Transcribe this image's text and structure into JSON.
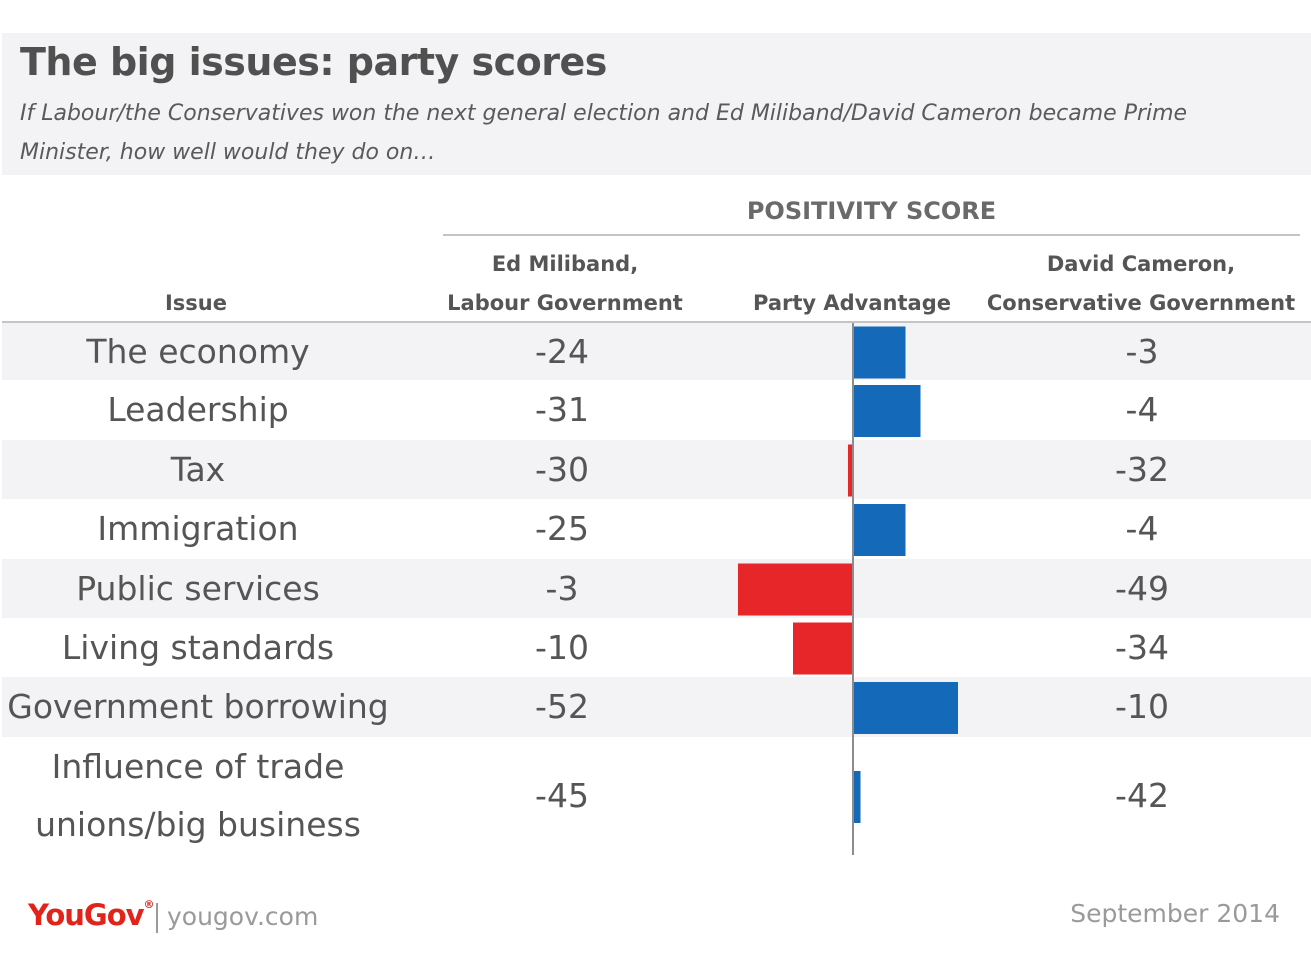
{
  "title": "The big issues: party scores",
  "subtitle": "If Labour/the Conservatives won the next general election and Ed Miliband/David Cameron became Prime Minister, how well would they do on…",
  "group_header": "POSITIVITY SCORE",
  "columns": {
    "issue": "Issue",
    "labour_line1": "Ed Miliband,",
    "labour_line2": "Labour Government",
    "advantage": "Party Advantage",
    "conservative_line1": "David Cameron,",
    "conservative_line2": "Conservative Government"
  },
  "colors": {
    "conservative": "#1469b8",
    "labour": "#e7262a"
  },
  "chart_data": {
    "type": "bar",
    "categories": [
      "The economy",
      "Leadership",
      "Tax",
      "Immigration",
      "Public services",
      "Living standards",
      "Government borrowing",
      "Influence of trade unions/big business"
    ],
    "series": [
      {
        "name": "Ed Miliband, Labour Government",
        "values": [
          -24,
          -31,
          -30,
          -25,
          -3,
          -10,
          -52,
          -45
        ]
      },
      {
        "name": "David Cameron, Conservative Government",
        "values": [
          -3,
          -4,
          -32,
          -4,
          -49,
          -34,
          -10,
          -42
        ]
      },
      {
        "name": "Party Advantage",
        "values": [
          21,
          27,
          -2,
          21,
          -46,
          -24,
          42,
          3
        ]
      }
    ]
  },
  "footer": {
    "logo": "YouGov",
    "logo_mark": "®",
    "website": "yougov.com",
    "date": "September 2014"
  }
}
